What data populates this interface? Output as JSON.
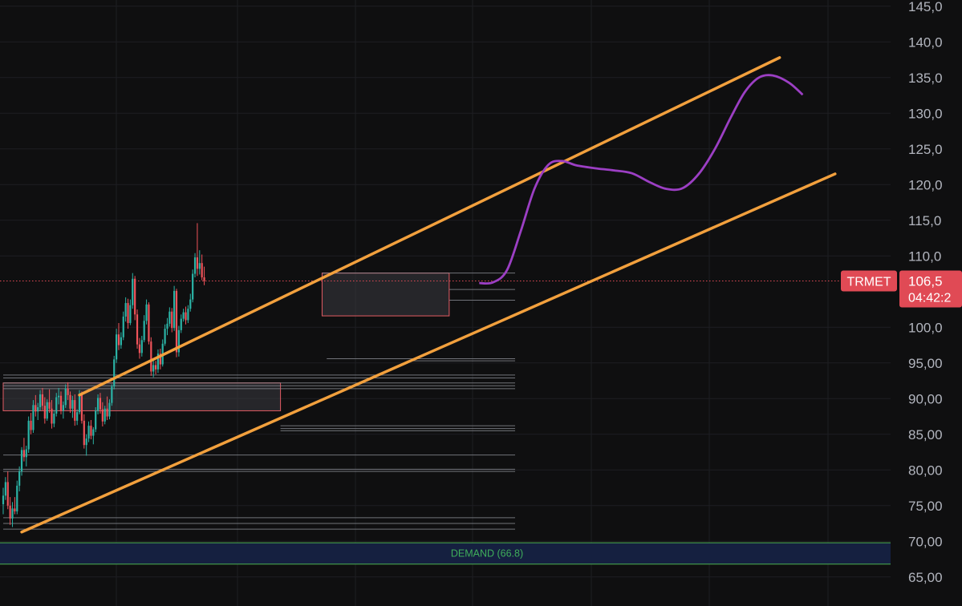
{
  "symbol": {
    "ticker": "TRMET",
    "last_price": 106.5,
    "price_label": "106,5",
    "countdown": "04:42:2"
  },
  "colors": {
    "background": "#0f0f10",
    "grid": "#1e1f22",
    "up_candle": "#2bb3a6",
    "down_candle": "#f0535a",
    "channel": "#f2a03d",
    "projection": "#9c3fc4",
    "demand_border": "#4caf50",
    "demand_fill": "#152040",
    "price_tag": "#e04a55",
    "level_line": "#8a8c94"
  },
  "chart_data": {
    "type": "candlestick",
    "y_axis": {
      "ylim": [
        64,
        146
      ],
      "ticks": [
        145,
        140,
        135,
        130,
        125,
        120,
        115,
        110,
        100,
        95,
        90,
        85,
        80,
        75,
        70,
        65
      ],
      "tick_labels": [
        "145,0",
        "140,0",
        "135,0",
        "130,0",
        "125,0",
        "120,0",
        "115,0",
        "110,0",
        "100,0",
        "95,00",
        "90,00",
        "85,00",
        "80,00",
        "75,00",
        "70,00",
        "65,00"
      ]
    },
    "x_range": [
      0,
      205
    ],
    "candles": [
      [
        75.2,
        77.5,
        73.8,
        76.4
      ],
      [
        76.4,
        79.0,
        75.8,
        78.3
      ],
      [
        78.3,
        79.8,
        74.5,
        75.0
      ],
      [
        75.0,
        76.2,
        72.3,
        73.2
      ],
      [
        73.2,
        75.5,
        72.0,
        74.6
      ],
      [
        74.6,
        76.2,
        73.8,
        74.2
      ],
      [
        74.2,
        78.5,
        73.8,
        77.8
      ],
      [
        77.8,
        80.5,
        77.0,
        79.8
      ],
      [
        79.8,
        83.2,
        79.2,
        82.8
      ],
      [
        82.8,
        84.5,
        81.2,
        81.8
      ],
      [
        81.8,
        83.4,
        80.5,
        82.9
      ],
      [
        82.9,
        87.5,
        82.4,
        86.9
      ],
      [
        86.9,
        88.0,
        85.0,
        85.6
      ],
      [
        85.6,
        89.8,
        85.2,
        89.1
      ],
      [
        89.1,
        90.5,
        87.5,
        88.2
      ],
      [
        88.2,
        89.4,
        87.0,
        88.8
      ],
      [
        88.8,
        91.2,
        88.3,
        90.6
      ],
      [
        90.6,
        91.5,
        88.4,
        89.0
      ],
      [
        89.0,
        90.2,
        86.5,
        87.2
      ],
      [
        87.2,
        89.9,
        86.9,
        89.5
      ],
      [
        89.5,
        91.3,
        88.0,
        88.6
      ],
      [
        88.6,
        89.8,
        85.8,
        86.5
      ],
      [
        86.5,
        88.4,
        86.0,
        87.9
      ],
      [
        87.9,
        90.8,
        87.5,
        90.2
      ],
      [
        90.2,
        91.5,
        89.2,
        90.4
      ],
      [
        90.4,
        91.0,
        87.8,
        88.3
      ],
      [
        88.3,
        89.6,
        87.2,
        89.1
      ],
      [
        89.1,
        92.0,
        88.7,
        91.4
      ],
      [
        91.4,
        92.3,
        89.8,
        90.5
      ],
      [
        90.5,
        91.0,
        88.0,
        88.6
      ],
      [
        88.6,
        90.4,
        87.3,
        89.8
      ],
      [
        89.8,
        90.6,
        86.2,
        86.9
      ],
      [
        86.9,
        88.5,
        86.3,
        88.1
      ],
      [
        88.1,
        91.2,
        87.8,
        90.7
      ],
      [
        90.7,
        91.0,
        86.5,
        86.9
      ],
      [
        86.9,
        87.8,
        83.0,
        83.5
      ],
      [
        83.5,
        85.0,
        82.0,
        84.4
      ],
      [
        84.4,
        86.8,
        83.9,
        86.2
      ],
      [
        86.2,
        87.0,
        84.3,
        84.8
      ],
      [
        84.8,
        86.0,
        83.6,
        85.7
      ],
      [
        85.7,
        88.8,
        85.3,
        88.3
      ],
      [
        88.3,
        90.6,
        87.8,
        90.1
      ],
      [
        90.1,
        90.8,
        87.9,
        88.5
      ],
      [
        88.5,
        89.5,
        86.1,
        86.8
      ],
      [
        86.8,
        89.0,
        86.4,
        88.6
      ],
      [
        88.6,
        90.3,
        87.0,
        87.5
      ],
      [
        87.5,
        89.9,
        87.1,
        89.4
      ],
      [
        89.4,
        92.0,
        89.0,
        91.7
      ],
      [
        91.7,
        96.0,
        91.3,
        95.5
      ],
      [
        95.5,
        99.8,
        95.0,
        99.0
      ],
      [
        99.0,
        100.6,
        96.8,
        97.5
      ],
      [
        97.5,
        99.3,
        97.0,
        98.6
      ],
      [
        98.6,
        102.2,
        98.2,
        101.5
      ],
      [
        101.5,
        104.2,
        100.8,
        103.4
      ],
      [
        103.4,
        104.0,
        99.8,
        100.6
      ],
      [
        100.6,
        103.9,
        100.3,
        103.1
      ],
      [
        103.1,
        107.6,
        102.6,
        106.8
      ],
      [
        106.8,
        107.2,
        101.0,
        101.8
      ],
      [
        101.8,
        102.5,
        97.0,
        97.6
      ],
      [
        97.6,
        98.5,
        95.6,
        96.4
      ],
      [
        96.4,
        98.8,
        95.9,
        98.2
      ],
      [
        98.2,
        101.7,
        97.9,
        100.9
      ],
      [
        100.9,
        103.9,
        100.4,
        103.2
      ],
      [
        103.2,
        103.5,
        97.6,
        98.0
      ],
      [
        98.0,
        98.6,
        93.2,
        93.8
      ],
      [
        93.8,
        95.5,
        93.0,
        94.7
      ],
      [
        94.7,
        95.3,
        93.4,
        94.1
      ],
      [
        94.1,
        96.9,
        93.6,
        96.3
      ],
      [
        96.3,
        97.0,
        94.1,
        94.8
      ],
      [
        94.8,
        98.3,
        94.5,
        97.7
      ],
      [
        97.7,
        100.4,
        97.4,
        99.8
      ],
      [
        99.8,
        101.3,
        98.9,
        100.5
      ],
      [
        100.5,
        102.8,
        100.1,
        102.2
      ],
      [
        102.2,
        102.7,
        99.3,
        99.9
      ],
      [
        99.9,
        105.8,
        99.5,
        105.1
      ],
      [
        105.1,
        105.4,
        95.8,
        96.5
      ],
      [
        96.5,
        100.2,
        95.9,
        99.6
      ],
      [
        99.6,
        101.8,
        99.2,
        101.2
      ],
      [
        101.2,
        102.6,
        100.8,
        102.1
      ],
      [
        102.1,
        102.9,
        100.4,
        101.0
      ],
      [
        101.0,
        103.1,
        100.6,
        102.6
      ],
      [
        102.6,
        104.7,
        102.2,
        103.9
      ],
      [
        103.9,
        108.1,
        103.5,
        107.5
      ],
      [
        107.5,
        110.4,
        107.0,
        109.8
      ],
      [
        109.8,
        114.6,
        107.2,
        108.2
      ],
      [
        108.2,
        110.8,
        107.4,
        109.0
      ],
      [
        109.0,
        110.2,
        106.6,
        107.0
      ],
      [
        107.0,
        108.5,
        105.9,
        106.5
      ]
    ],
    "channel_lines": [
      {
        "name": "upper",
        "from": [
          33,
          90.5
        ],
        "to": [
          336,
          137.8
        ]
      },
      {
        "name": "lower",
        "from": [
          8,
          71.3
        ],
        "to": [
          360,
          121.5
        ]
      }
    ],
    "projection_path": [
      [
        206,
        106.2
      ],
      [
        212,
        106.3
      ],
      [
        218,
        108.0
      ],
      [
        224,
        113.5
      ],
      [
        230,
        119.5
      ],
      [
        236,
        122.8
      ],
      [
        242,
        123.3
      ],
      [
        248,
        122.7
      ],
      [
        256,
        122.3
      ],
      [
        264,
        122.0
      ],
      [
        272,
        121.6
      ],
      [
        280,
        120.3
      ],
      [
        287,
        119.4
      ],
      [
        294,
        119.5
      ],
      [
        301,
        121.5
      ],
      [
        308,
        125.0
      ],
      [
        315,
        129.5
      ],
      [
        321,
        133.0
      ],
      [
        327,
        135.0
      ],
      [
        333,
        135.3
      ],
      [
        340,
        134.3
      ],
      [
        346,
        132.6
      ]
    ],
    "zones": [
      {
        "from": [
          0,
          88.3
        ],
        "to": [
          120,
          92.2
        ],
        "fill": "#3a3b3f",
        "stroke": "#e35b63"
      },
      {
        "from": [
          138,
          101.6
        ],
        "to": [
          193,
          107.6
        ],
        "fill": "#3a3b3f",
        "stroke": "#e35b63"
      }
    ],
    "levels": [
      {
        "value": 107.6,
        "from": 138,
        "to": 225
      },
      {
        "value": 105.3,
        "from": 193,
        "to": 225
      },
      {
        "value": 103.8,
        "from": 193,
        "to": 225
      },
      {
        "value": 95.6,
        "from": 140,
        "to": 225
      },
      {
        "value": 95.3,
        "from": 175,
        "to": 225
      },
      {
        "value": 93.3,
        "from": 0,
        "to": 225
      },
      {
        "value": 92.9,
        "from": 0,
        "to": 225
      },
      {
        "value": 92.2,
        "from": 0,
        "to": 225
      },
      {
        "value": 91.8,
        "from": 0,
        "to": 225
      },
      {
        "value": 91.4,
        "from": 0,
        "to": 225
      },
      {
        "value": 86.2,
        "from": 120,
        "to": 225
      },
      {
        "value": 85.8,
        "from": 120,
        "to": 225
      },
      {
        "value": 85.5,
        "from": 120,
        "to": 225
      },
      {
        "value": 82.1,
        "from": 0,
        "to": 225
      },
      {
        "value": 80.1,
        "from": 0,
        "to": 225
      },
      {
        "value": 79.8,
        "from": 0,
        "to": 225
      },
      {
        "value": 73.3,
        "from": 0,
        "to": 225
      },
      {
        "value": 72.5,
        "from": 0,
        "to": 225
      },
      {
        "value": 71.7,
        "from": 0,
        "to": 225
      }
    ],
    "demand_zone": {
      "label": "DEMAND (66.8)",
      "top": 69.8,
      "bottom": 66.8
    },
    "current_price_line": 106.5,
    "grid": true
  }
}
